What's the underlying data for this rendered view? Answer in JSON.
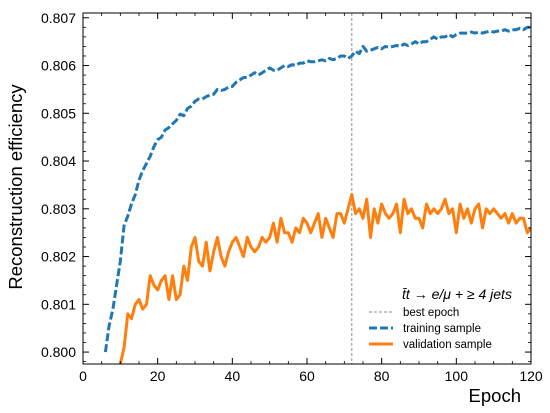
{
  "chart_data": {
    "type": "line",
    "xlabel": "Epoch",
    "ylabel": "Reconstruction efficiency",
    "xlim": [
      0,
      120
    ],
    "ylim": [
      0.79975,
      0.8071
    ],
    "x_ticks": [
      0,
      20,
      40,
      60,
      80,
      100,
      120
    ],
    "x_tick_labels": [
      "0",
      "20",
      "40",
      "60",
      "80",
      "100",
      "120"
    ],
    "y_ticks": [
      0.8,
      0.801,
      0.802,
      0.803,
      0.804,
      0.805,
      0.806,
      0.807
    ],
    "y_tick_labels": [
      "0.800",
      "0.801",
      "0.802",
      "0.803",
      "0.804",
      "0.805",
      "0.806",
      "0.807"
    ],
    "grid": false,
    "legend_placement": "bottom-right",
    "legend_title": "t̄t → e/μ + ≥ 4 jets",
    "best_epoch": 72,
    "series": [
      {
        "name": "best epoch",
        "style": "thin-dashed-gray",
        "color": "#8c8c8c"
      },
      {
        "name": "training sample",
        "style": "dashed",
        "color": "#1f77b4",
        "x": [
          6,
          7,
          8,
          9,
          10,
          11,
          12,
          13,
          14,
          15,
          16,
          17,
          18,
          19,
          20,
          21,
          22,
          23,
          24,
          25,
          26,
          27,
          28,
          29,
          30,
          31,
          32,
          33,
          34,
          35,
          36,
          37,
          38,
          39,
          40,
          41,
          42,
          43,
          44,
          45,
          46,
          47,
          48,
          49,
          50,
          51,
          52,
          53,
          54,
          55,
          56,
          57,
          58,
          59,
          60,
          61,
          62,
          63,
          64,
          65,
          66,
          67,
          68,
          69,
          70,
          71,
          72,
          73,
          74,
          75,
          76,
          77,
          78,
          79,
          80,
          81,
          82,
          83,
          84,
          85,
          86,
          87,
          88,
          89,
          90,
          91,
          92,
          93,
          94,
          95,
          96,
          97,
          98,
          99,
          100,
          101,
          102,
          103,
          104,
          105,
          106,
          107,
          108,
          109,
          110,
          111,
          112,
          113,
          114,
          115,
          116,
          117,
          118,
          119,
          120
        ],
        "values": [
          0.8,
          0.80055,
          0.8009,
          0.8014,
          0.8019,
          0.80265,
          0.80285,
          0.8031,
          0.8033,
          0.8036,
          0.8038,
          0.80395,
          0.8041,
          0.8043,
          0.80445,
          0.8045,
          0.80465,
          0.8047,
          0.80478,
          0.80485,
          0.80498,
          0.80495,
          0.8051,
          0.80515,
          0.80525,
          0.8053,
          0.8053,
          0.80535,
          0.80538,
          0.8054,
          0.8055,
          0.80548,
          0.8055,
          0.80555,
          0.80556,
          0.80565,
          0.8057,
          0.80575,
          0.80575,
          0.8058,
          0.80585,
          0.8058,
          0.80585,
          0.8059,
          0.80595,
          0.8059,
          0.8059,
          0.80595,
          0.806,
          0.80598,
          0.80602,
          0.806,
          0.80605,
          0.80605,
          0.8061,
          0.80608,
          0.80608,
          0.8061,
          0.80612,
          0.8061,
          0.80615,
          0.80612,
          0.80615,
          0.8062,
          0.8062,
          0.80615,
          0.8062,
          0.8063,
          0.80625,
          0.8064,
          0.8063,
          0.80632,
          0.80635,
          0.80638,
          0.80635,
          0.8064,
          0.80638,
          0.8064,
          0.80642,
          0.8064,
          0.80645,
          0.80642,
          0.80645,
          0.8065,
          0.80645,
          0.8065,
          0.8065,
          0.80655,
          0.8066,
          0.80655,
          0.8066,
          0.8066,
          0.80665,
          0.8066,
          0.80665,
          0.80668,
          0.80668,
          0.80668,
          0.8067,
          0.80668,
          0.8067,
          0.80668,
          0.8067,
          0.80672,
          0.8067,
          0.80672,
          0.80672,
          0.80675,
          0.80672,
          0.80675,
          0.80675,
          0.80678,
          0.80675,
          0.8068,
          0.8068
        ]
      },
      {
        "name": "validation sample",
        "style": "solid",
        "color": "#ff7f0e",
        "x": [
          10,
          11,
          12,
          13,
          14,
          15,
          16,
          17,
          18,
          19,
          20,
          21,
          22,
          23,
          24,
          25,
          26,
          27,
          28,
          29,
          30,
          31,
          32,
          33,
          34,
          35,
          36,
          37,
          38,
          39,
          40,
          41,
          42,
          43,
          44,
          45,
          46,
          47,
          48,
          49,
          50,
          51,
          52,
          53,
          54,
          55,
          56,
          57,
          58,
          59,
          60,
          61,
          62,
          63,
          64,
          65,
          66,
          67,
          68,
          69,
          70,
          71,
          72,
          73,
          74,
          75,
          76,
          77,
          78,
          79,
          80,
          81,
          82,
          83,
          84,
          85,
          86,
          87,
          88,
          89,
          90,
          91,
          92,
          93,
          94,
          95,
          96,
          97,
          98,
          99,
          100,
          101,
          102,
          103,
          104,
          105,
          106,
          107,
          108,
          109,
          110,
          111,
          112,
          113,
          114,
          115,
          116,
          117,
          118,
          119,
          120
        ],
        "values": [
          0.79975,
          0.8001,
          0.8008,
          0.8007,
          0.801,
          0.8011,
          0.8009,
          0.801,
          0.8016,
          0.8014,
          0.8013,
          0.8015,
          0.8016,
          0.8011,
          0.8016,
          0.8011,
          0.8012,
          0.8018,
          0.8015,
          0.8022,
          0.8024,
          0.8019,
          0.8018,
          0.8023,
          0.8017,
          0.8021,
          0.8024,
          0.802,
          0.8018,
          0.8021,
          0.8023,
          0.8024,
          0.8022,
          0.802,
          0.8024,
          0.8022,
          0.8021,
          0.8022,
          0.8024,
          0.8023,
          0.8024,
          0.8027,
          0.8023,
          0.8028,
          0.8025,
          0.8025,
          0.8023,
          0.8026,
          0.8025,
          0.8028,
          0.8027,
          0.8025,
          0.8027,
          0.8029,
          0.8024,
          0.8028,
          0.8026,
          0.8024,
          0.8029,
          0.8029,
          0.8027,
          0.803,
          0.8033,
          0.8029,
          0.803,
          0.8028,
          0.8032,
          0.8024,
          0.803,
          0.8027,
          0.8031,
          0.8029,
          0.8028,
          0.8029,
          0.8031,
          0.8025,
          0.8032,
          0.8029,
          0.803,
          0.8028,
          0.8028,
          0.8026,
          0.8031,
          0.8029,
          0.803,
          0.8029,
          0.803,
          0.8032,
          0.8029,
          0.803,
          0.8025,
          0.8031,
          0.8028,
          0.803,
          0.8027,
          0.803,
          0.8031,
          0.8026,
          0.803,
          0.8029,
          0.803,
          0.8029,
          0.8028,
          0.8029,
          0.8027,
          0.8029,
          0.8027,
          0.8028,
          0.8028,
          0.8025,
          0.8026
        ]
      }
    ]
  }
}
